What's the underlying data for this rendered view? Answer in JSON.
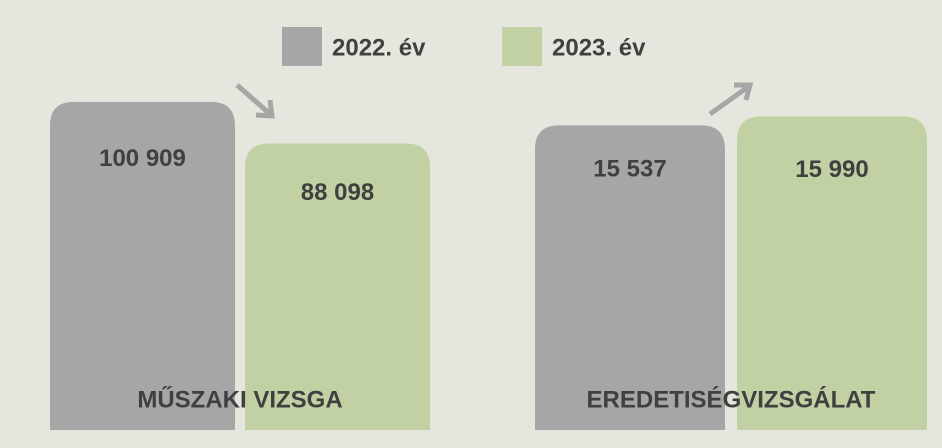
{
  "chart_data": [
    {
      "type": "bar",
      "categories": [
        "MŰSZAKI VIZSGA"
      ],
      "ylim": [
        0,
        123000
      ],
      "series": [
        {
          "name": "2022. év",
          "color": "#a6a6a6",
          "values": [
            100909
          ],
          "value_labels": [
            "100 909"
          ]
        },
        {
          "name": "2023. év",
          "color": "#c2d1a4",
          "values": [
            88098
          ],
          "value_labels": [
            "88 098"
          ]
        }
      ]
    },
    {
      "type": "bar",
      "categories": [
        "EREDETISÉGVIZSGÁLAT"
      ],
      "ylim": [
        0,
        20400
      ],
      "series": [
        {
          "name": "2022. év",
          "color": "#a6a6a6",
          "values": [
            15537
          ],
          "value_labels": [
            "15 537"
          ]
        },
        {
          "name": "2023. év",
          "color": "#c2d1a4",
          "values": [
            15990
          ],
          "value_labels": [
            "15 990"
          ]
        }
      ]
    }
  ]
}
